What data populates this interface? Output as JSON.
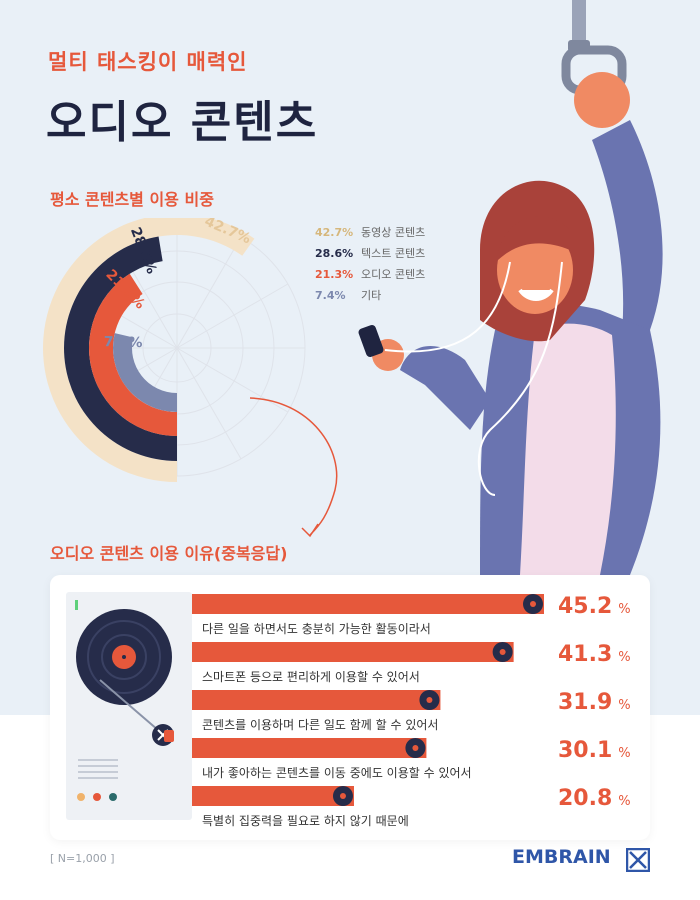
{
  "header": {
    "subtitle": "멀티 태스킹이 매력인",
    "title": "오디오 콘텐츠"
  },
  "section_usage": {
    "title": "평소 콘텐츠별 이용 비중"
  },
  "section_reasons": {
    "title": "오디오 콘텐츠 이용 이유(중복응답)"
  },
  "footnote": "[ N=1,000 ]",
  "brand": "EMBRAIN",
  "colors": {
    "accent": "#e6583b",
    "navy": "#262c4a",
    "beige": "#f4e2c7",
    "slate": "#7c88ae",
    "background": "#e9f0f7"
  },
  "chart_data": [
    {
      "type": "pie",
      "title": "평소 콘텐츠별 이용 비중",
      "categories": [
        "동영상 콘텐츠",
        "텍스트 콘텐츠",
        "오디오 콘텐츠",
        "기타"
      ],
      "values": [
        42.7,
        28.6,
        21.3,
        7.4
      ],
      "value_labels": [
        "42.7%",
        "28.6%",
        "21.3%",
        "7.4%"
      ],
      "colors": [
        "#f4e2c7",
        "#262c4a",
        "#e6583b",
        "#7c88ae"
      ],
      "legend_position": "right"
    },
    {
      "type": "bar",
      "title": "오디오 콘텐츠 이용 이유(중복응답)",
      "categories": [
        "다른 일을 하면서도 충분히 가능한 활동이라서",
        "스마트폰 등으로 편리하게 이용할 수 있어서",
        "콘텐츠를 이용하며 다른 일도 함께 할 수 있어서",
        "내가 좋아하는 콘텐츠를 이동 중에도 이용할 수 있어서",
        "특별히 집중력을 필요로 하지 않기 때문에"
      ],
      "values": [
        45.2,
        41.3,
        31.9,
        30.1,
        20.8
      ],
      "value_text": [
        "45.2",
        "41.3",
        "31.9",
        "30.1",
        "20.8"
      ],
      "unit": "%",
      "xlim": [
        0,
        50
      ]
    }
  ]
}
